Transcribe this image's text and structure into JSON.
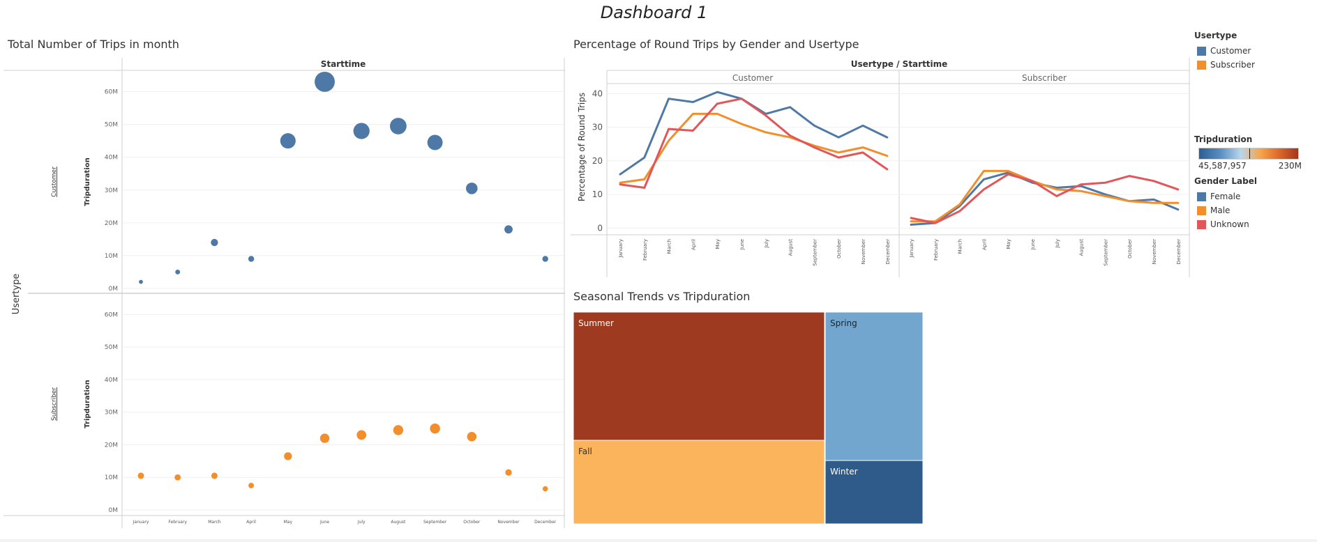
{
  "dashboard": {
    "title": "Dashboard 1"
  },
  "colors": {
    "customer": "#4e79a7",
    "subscriber": "#f28e2b",
    "female": "#4e79a7",
    "male": "#f28e2b",
    "unknown": "#e15759",
    "summer": "#9e3a20",
    "spring": "#72a6ce",
    "fall": "#fbb35c",
    "winter": "#2e5b8a"
  },
  "months": [
    "January",
    "February",
    "March",
    "April",
    "May",
    "June",
    "July",
    "August",
    "September",
    "October",
    "November",
    "December"
  ],
  "scatter": {
    "title": "Total Number of Trips in month",
    "column_header": "Starttime",
    "row_field_label": "Usertype",
    "measure_label": "Tripduration",
    "y_ticks": [
      "0M",
      "10M",
      "20M",
      "30M",
      "40M",
      "50M",
      "60M"
    ],
    "ylim": [
      0,
      65
    ],
    "panels": [
      {
        "label": "Customer",
        "values": [
          2,
          5,
          14,
          9,
          45,
          63,
          48,
          49.5,
          44.5,
          30.5,
          18,
          9
        ]
      },
      {
        "label": "Subscriber",
        "values": [
          10.5,
          10,
          10.5,
          7.5,
          16.5,
          22,
          23,
          24.5,
          25,
          22.5,
          11.5,
          6.5
        ]
      }
    ]
  },
  "lines": {
    "title": "Percentage of Round Trips by Gender and Usertype",
    "column_header": "Usertype / Starttime",
    "ylabel": "Percentage of Round Trips",
    "y_ticks": [
      "0",
      "10",
      "20",
      "30",
      "40"
    ],
    "ylim": [
      -2,
      43
    ],
    "panels": [
      {
        "label": "Customer",
        "series": [
          {
            "name": "Female",
            "values": [
              16,
              21,
              38.5,
              37.5,
              40.5,
              38.5,
              34,
              36,
              30.5,
              27,
              30.5,
              27
            ]
          },
          {
            "name": "Male",
            "values": [
              13.5,
              14.5,
              26,
              34,
              34,
              31,
              28.5,
              27,
              24.5,
              22.5,
              24,
              21.5
            ]
          },
          {
            "name": "Unknown",
            "values": [
              13,
              12,
              29.5,
              29,
              37,
              38.5,
              33.5,
              27.5,
              24,
              21,
              22.5,
              17.5
            ]
          }
        ]
      },
      {
        "label": "Subscriber",
        "series": [
          {
            "name": "Female",
            "values": [
              1,
              1.5,
              6.5,
              14.5,
              16.5,
              13.5,
              12,
              12.5,
              10,
              8,
              8.5,
              5.5
            ]
          },
          {
            "name": "Male",
            "values": [
              2,
              2,
              7,
              17,
              17,
              14,
              11.5,
              11,
              9.5,
              8,
              7.5,
              7.5
            ]
          },
          {
            "name": "Unknown",
            "values": [
              3,
              1.5,
              5,
              11.5,
              16,
              14,
              9.5,
              13,
              13.5,
              15.5,
              14,
              11.5
            ]
          }
        ]
      }
    ]
  },
  "treemap": {
    "title": "Seasonal Trends vs Tripduration",
    "items": [
      {
        "label": "Summer",
        "value": 49.5
      },
      {
        "label": "Fall",
        "value": 33.5
      },
      {
        "label": "Spring",
        "value": 11.6
      },
      {
        "label": "Winter",
        "value": 4.5
      }
    ]
  },
  "legend": {
    "usertype": {
      "title": "Usertype",
      "items": [
        "Customer",
        "Subscriber"
      ]
    },
    "tripduration": {
      "title": "Tripduration",
      "min_label": "45,587,957",
      "max_label": "230M"
    },
    "gender": {
      "title": "Gender Label",
      "items": [
        "Female",
        "Male",
        "Unknown"
      ]
    }
  }
}
